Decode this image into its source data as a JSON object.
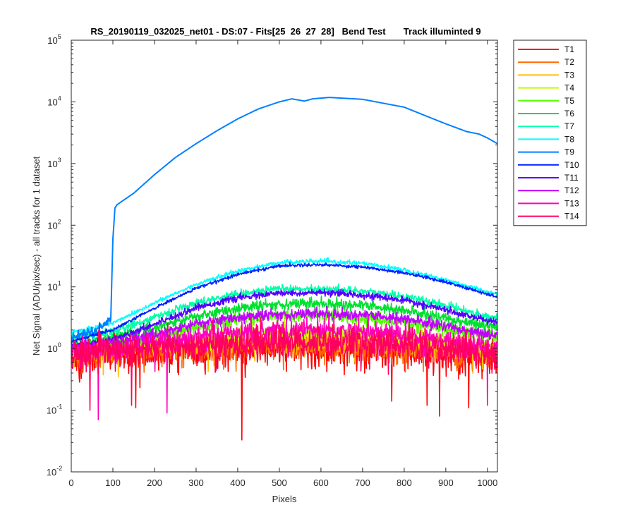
{
  "chart_data": {
    "type": "line",
    "title": "RS_20190119_032025_net01 - DS:07 - Fits[25  26  27  28]   Bend Test       Track illuminted 9",
    "xlabel": "Pixels",
    "ylabel": "Net Signal (ADU/pix/sec) - all tracks for 1 dataset",
    "x_range": [
      0,
      1024
    ],
    "y_range": [
      0.01,
      100000
    ],
    "y_scale": "log",
    "grid": false,
    "legend_position": "outside-right",
    "x_ticks": [
      "0",
      "100",
      "200",
      "300",
      "400",
      "500",
      "600",
      "700",
      "800",
      "900",
      "1000"
    ],
    "y_ticks": [
      {
        "base": "10",
        "exp": "-2"
      },
      {
        "base": "10",
        "exp": "-1"
      },
      {
        "base": "10",
        "exp": "0"
      },
      {
        "base": "10",
        "exp": "1"
      },
      {
        "base": "10",
        "exp": "2"
      },
      {
        "base": "10",
        "exp": "3"
      },
      {
        "base": "10",
        "exp": "4"
      },
      {
        "base": "10",
        "exp": "5"
      }
    ],
    "series": [
      {
        "name": "T1",
        "color": "#ff0000",
        "x": [
          0,
          100,
          200,
          300,
          400,
          500,
          600,
          700,
          800,
          900,
          1024
        ],
        "y": [
          0.7,
          0.8,
          0.85,
          0.9,
          0.95,
          1.0,
          1.0,
          0.95,
          0.9,
          0.85,
          0.7
        ],
        "noise": 0.3
      },
      {
        "name": "T2",
        "color": "#ff6a00",
        "x": [
          0,
          100,
          200,
          300,
          400,
          500,
          600,
          700,
          800,
          900,
          1024
        ],
        "y": [
          0.8,
          0.9,
          1.0,
          1.05,
          1.1,
          1.15,
          1.15,
          1.1,
          1.0,
          0.95,
          0.8
        ],
        "noise": 0.25
      },
      {
        "name": "T3",
        "color": "#ffbf00",
        "x": [
          0,
          100,
          200,
          300,
          400,
          500,
          600,
          700,
          800,
          900,
          1024
        ],
        "y": [
          0.85,
          0.95,
          1.05,
          1.15,
          1.25,
          1.35,
          1.35,
          1.3,
          1.2,
          1.05,
          0.9
        ],
        "noise": 0.2
      },
      {
        "name": "T4",
        "color": "#bfff00",
        "x": [
          0,
          100,
          200,
          300,
          400,
          500,
          600,
          700,
          800,
          900,
          1024
        ],
        "y": [
          0.9,
          1.0,
          1.2,
          1.4,
          1.6,
          1.8,
          1.8,
          1.7,
          1.5,
          1.3,
          1.0
        ],
        "noise": 0.15
      },
      {
        "name": "T5",
        "color": "#55ff00",
        "x": [
          0,
          100,
          200,
          300,
          400,
          500,
          600,
          700,
          800,
          900,
          1024
        ],
        "y": [
          1.0,
          1.2,
          1.6,
          2.2,
          2.9,
          3.4,
          3.4,
          3.1,
          2.6,
          2.1,
          1.6
        ],
        "noise": 0.12
      },
      {
        "name": "T6",
        "color": "#00e030",
        "x": [
          0,
          100,
          200,
          300,
          400,
          500,
          600,
          700,
          800,
          900,
          1024
        ],
        "y": [
          1.2,
          1.5,
          2.2,
          3.3,
          4.5,
          5.3,
          5.4,
          5.0,
          4.1,
          3.1,
          2.2
        ],
        "noise": 0.1
      },
      {
        "name": "T7",
        "color": "#00ffaa",
        "x": [
          0,
          100,
          200,
          300,
          400,
          500,
          600,
          700,
          800,
          900,
          1024
        ],
        "y": [
          1.5,
          1.9,
          3.2,
          5.5,
          7.8,
          9.2,
          9.3,
          8.6,
          7.0,
          5.0,
          3.0
        ],
        "noise": 0.07
      },
      {
        "name": "T8",
        "color": "#00ffff",
        "x": [
          0,
          100,
          200,
          300,
          400,
          500,
          600,
          700,
          800,
          900,
          1024
        ],
        "y": [
          1.8,
          2.6,
          5.5,
          11,
          18,
          25,
          26,
          24,
          19,
          13,
          7.5
        ],
        "noise": 0.04
      },
      {
        "name": "T9",
        "color": "#0080ff",
        "x": [
          0,
          60,
          80,
          95,
          100,
          105,
          110,
          150,
          200,
          250,
          300,
          350,
          400,
          450,
          500,
          530,
          550,
          560,
          580,
          620,
          700,
          800,
          850,
          900,
          950,
          980,
          1000,
          1024
        ],
        "y": [
          1.5,
          2.0,
          2.5,
          3.0,
          60,
          190,
          215,
          330,
          660,
          1250,
          2100,
          3400,
          5300,
          7700,
          10000,
          11200,
          10600,
          10300,
          11200,
          11800,
          11000,
          8200,
          6000,
          4400,
          3300,
          3000,
          2600,
          2100
        ],
        "noise": 0.0
      },
      {
        "name": "T10",
        "color": "#0020ff",
        "x": [
          0,
          100,
          200,
          300,
          400,
          500,
          600,
          700,
          800,
          900,
          1024
        ],
        "y": [
          1.3,
          2.0,
          4.5,
          9.5,
          16,
          22,
          23,
          21,
          17,
          12,
          6.8
        ],
        "noise": 0.03
      },
      {
        "name": "T11",
        "color": "#5500ff",
        "x": [
          0,
          100,
          200,
          300,
          400,
          500,
          600,
          700,
          800,
          900,
          1024
        ],
        "y": [
          1.1,
          1.4,
          2.5,
          4.6,
          6.6,
          7.9,
          8.0,
          7.4,
          6.0,
          4.2,
          2.6
        ],
        "noise": 0.06
      },
      {
        "name": "T12",
        "color": "#bf00ff",
        "x": [
          0,
          100,
          200,
          300,
          400,
          500,
          600,
          700,
          800,
          900,
          1024
        ],
        "y": [
          1.0,
          1.2,
          1.7,
          2.5,
          3.2,
          3.6,
          3.7,
          3.5,
          3.0,
          2.3,
          1.6
        ],
        "noise": 0.1
      },
      {
        "name": "T13",
        "color": "#ff00bf",
        "x": [
          0,
          100,
          200,
          300,
          400,
          500,
          600,
          700,
          800,
          900,
          1024
        ],
        "y": [
          0.9,
          1.0,
          1.2,
          1.5,
          1.8,
          2.0,
          2.0,
          1.9,
          1.7,
          1.4,
          1.0
        ],
        "noise": 0.2
      },
      {
        "name": "T14",
        "color": "#ff0060",
        "x": [
          0,
          100,
          200,
          300,
          400,
          500,
          600,
          700,
          800,
          900,
          1024
        ],
        "y": [
          0.8,
          0.9,
          1.0,
          1.1,
          1.2,
          1.3,
          1.3,
          1.25,
          1.15,
          1.0,
          0.8
        ],
        "noise": 0.28
      }
    ],
    "dips": [
      {
        "series": "T1",
        "x": 410,
        "y": 0.033
      },
      {
        "series": "T13",
        "x": 65,
        "y": 0.07
      },
      {
        "series": "T14",
        "x": 45,
        "y": 0.1
      },
      {
        "series": "T13",
        "x": 230,
        "y": 0.09
      },
      {
        "series": "T1",
        "x": 155,
        "y": 0.11
      },
      {
        "series": "T1",
        "x": 885,
        "y": 0.08
      },
      {
        "series": "T1",
        "x": 955,
        "y": 0.11
      },
      {
        "series": "T14",
        "x": 145,
        "y": 0.12
      },
      {
        "series": "T1",
        "x": 855,
        "y": 0.12
      },
      {
        "series": "T13",
        "x": 1000,
        "y": 0.12
      },
      {
        "series": "T1",
        "x": 770,
        "y": 0.14
      }
    ]
  }
}
